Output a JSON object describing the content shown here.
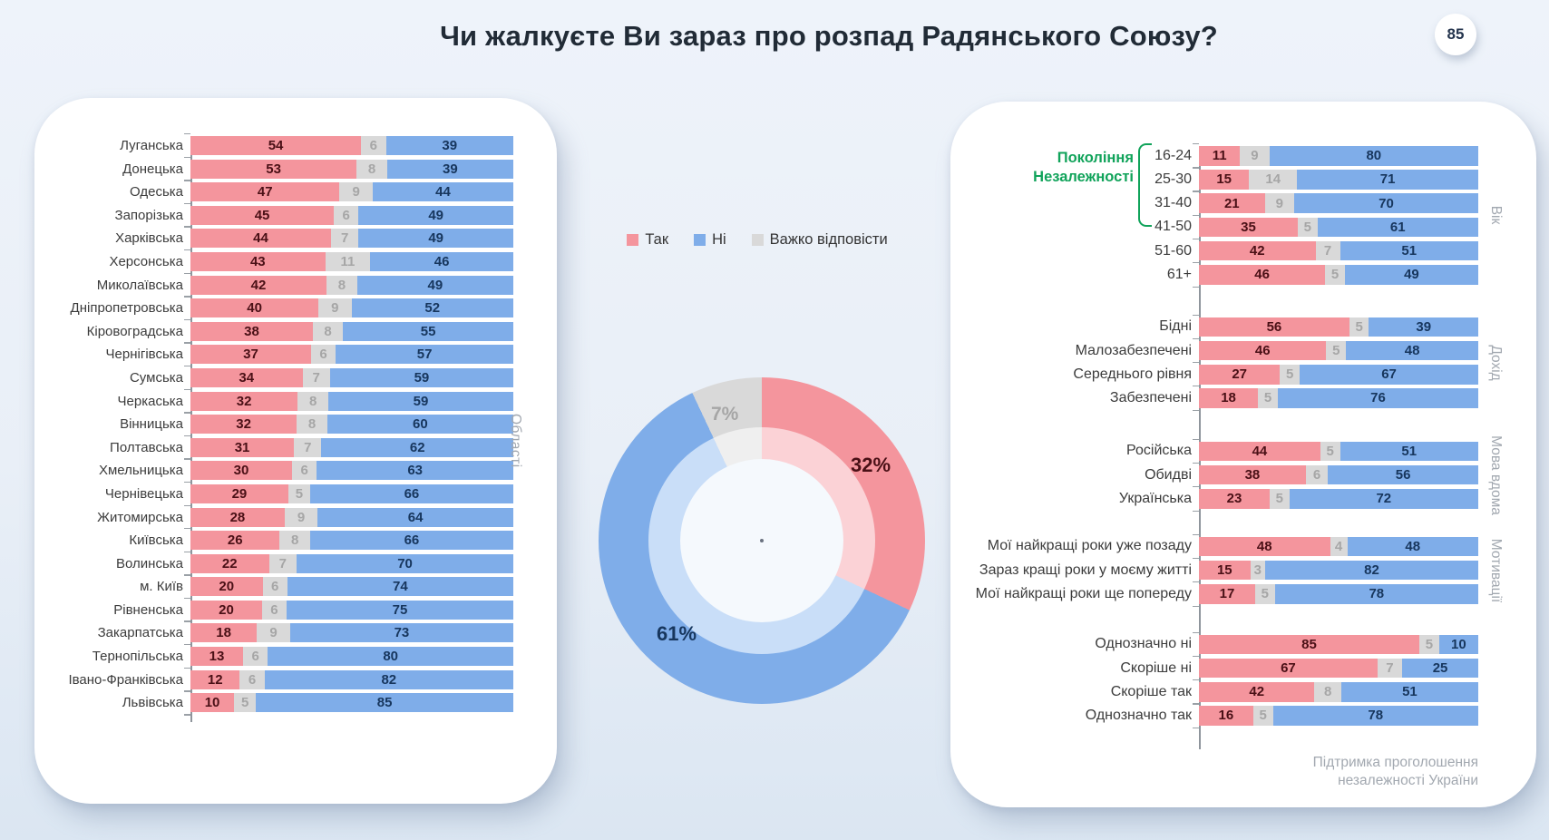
{
  "page": {
    "title": "Чи жалкуєте Ви зараз про розпад Радянського Союзу?",
    "badge": "85"
  },
  "legend": {
    "items": [
      {
        "label": "Так"
      },
      {
        "label": "Ні"
      },
      {
        "label": "Важко відповісти"
      }
    ]
  },
  "colors": {
    "yes": "#f4959d",
    "no": "#7fade9",
    "dk": "#d9d9d9",
    "yes_light": "#fbd2d6",
    "no_light": "#c9def8",
    "dk_light": "#efefef",
    "yes_text": "#4a1016",
    "no_text": "#17365d",
    "dk_text": "#a6a6a6",
    "green": "#10a35a",
    "muted": "#a2a8b0",
    "ink": "#3c3c3c",
    "title": "#212b36"
  },
  "chart_data": [
    {
      "type": "pie",
      "name": "overall-donut",
      "style": "donut",
      "slices": [
        {
          "label": "Так",
          "key": "yes",
          "value": 32,
          "pct_label": "32%"
        },
        {
          "label": "Ні",
          "key": "no",
          "value": 61,
          "pct_label": "61%"
        },
        {
          "label": "Важко відповісти",
          "key": "dk",
          "value": 7,
          "pct_label": "7%"
        }
      ]
    },
    {
      "type": "bar",
      "name": "oblast-breakdown",
      "orientation": "horizontal",
      "stacked": true,
      "xlim": [
        0,
        100
      ],
      "axis_label": "Області",
      "series_names": [
        "Так",
        "Важко відповісти",
        "Ні"
      ],
      "rows": [
        {
          "label": "Луганська",
          "values": [
            54,
            6,
            39
          ]
        },
        {
          "label": "Донецька",
          "values": [
            53,
            8,
            39
          ]
        },
        {
          "label": "Одеська",
          "values": [
            47,
            9,
            44
          ]
        },
        {
          "label": "Запорізька",
          "values": [
            45,
            6,
            49
          ]
        },
        {
          "label": "Харківська",
          "values": [
            44,
            7,
            49
          ]
        },
        {
          "label": "Херсонська",
          "values": [
            43,
            11,
            46
          ]
        },
        {
          "label": "Миколаївська",
          "values": [
            42,
            8,
            49
          ]
        },
        {
          "label": "Дніпропетровська",
          "values": [
            40,
            9,
            52
          ]
        },
        {
          "label": "Кіровоградська",
          "values": [
            38,
            8,
            55
          ]
        },
        {
          "label": "Чернігівська",
          "values": [
            37,
            6,
            57
          ]
        },
        {
          "label": "Сумська",
          "values": [
            34,
            7,
            59
          ]
        },
        {
          "label": "Черкаська",
          "values": [
            32,
            8,
            59
          ]
        },
        {
          "label": "Вінницька",
          "values": [
            32,
            8,
            60
          ]
        },
        {
          "label": "Полтавська",
          "values": [
            31,
            7,
            62
          ]
        },
        {
          "label": "Хмельницька",
          "values": [
            30,
            6,
            63
          ]
        },
        {
          "label": "Чернівецька",
          "values": [
            29,
            5,
            66
          ]
        },
        {
          "label": "Житомирська",
          "values": [
            28,
            9,
            64
          ]
        },
        {
          "label": "Київська",
          "values": [
            26,
            8,
            66
          ]
        },
        {
          "label": "Волинська",
          "values": [
            22,
            7,
            70
          ]
        },
        {
          "label": "м. Київ",
          "values": [
            20,
            6,
            74
          ]
        },
        {
          "label": "Рівненська",
          "values": [
            20,
            6,
            75
          ]
        },
        {
          "label": "Закарпатська",
          "values": [
            18,
            9,
            73
          ]
        },
        {
          "label": "Тернопільська",
          "values": [
            13,
            6,
            80
          ]
        },
        {
          "label": "Івано-Франківська",
          "values": [
            12,
            6,
            82
          ]
        },
        {
          "label": "Львівська",
          "values": [
            10,
            5,
            85
          ]
        }
      ]
    },
    {
      "type": "bar",
      "name": "demographics-breakdown",
      "orientation": "horizontal",
      "stacked": true,
      "xlim": [
        0,
        100
      ],
      "series_names": [
        "Так",
        "Важко відповісти",
        "Ні"
      ],
      "annotation": {
        "lines": [
          "Покоління",
          "Незалежності"
        ]
      },
      "caption_lines": [
        "Підтримка проголошення",
        "незалежності України"
      ],
      "sections": [
        {
          "name": "Вік",
          "rows": [
            {
              "label": "16-24",
              "values": [
                11,
                9,
                80
              ]
            },
            {
              "label": "25-30",
              "values": [
                15,
                14,
                71
              ]
            },
            {
              "label": "31-40",
              "values": [
                21,
                9,
                70
              ]
            },
            {
              "label": "41-50",
              "values": [
                35,
                5,
                61
              ]
            },
            {
              "label": "51-60",
              "values": [
                42,
                7,
                51
              ]
            },
            {
              "label": "61+",
              "values": [
                46,
                5,
                49
              ]
            }
          ]
        },
        {
          "name": "Дохід",
          "rows": [
            {
              "label": "Бідні",
              "values": [
                56,
                5,
                39
              ]
            },
            {
              "label": "Малозабезпечені",
              "values": [
                46,
                5,
                48
              ]
            },
            {
              "label": "Середнього рівня",
              "values": [
                27,
                5,
                67
              ]
            },
            {
              "label": "Забезпечені",
              "values": [
                18,
                5,
                76
              ]
            }
          ]
        },
        {
          "name": "Мова вдома",
          "rows": [
            {
              "label": "Російська",
              "values": [
                44,
                5,
                51
              ]
            },
            {
              "label": "Обидві",
              "values": [
                38,
                6,
                56
              ]
            },
            {
              "label": "Українська",
              "values": [
                23,
                5,
                72
              ]
            }
          ]
        },
        {
          "name": "Мотивації",
          "rows": [
            {
              "label": "Мої найкращі роки уже позаду",
              "values": [
                48,
                4,
                48
              ]
            },
            {
              "label": "Зараз кращі роки у моєму житті",
              "values": [
                15,
                3,
                82
              ]
            },
            {
              "label": "Мої найкращі роки ще попереду",
              "values": [
                17,
                5,
                78
              ]
            }
          ]
        },
        {
          "name": "Підтримка проголошення незалежності України",
          "rows": [
            {
              "label": "Однозначно ні",
              "values": [
                85,
                5,
                10
              ]
            },
            {
              "label": "Скоріше ні",
              "values": [
                67,
                7,
                25
              ]
            },
            {
              "label": "Скоріше так",
              "values": [
                42,
                8,
                51
              ]
            },
            {
              "label": "Однозначно так",
              "values": [
                16,
                5,
                78
              ]
            }
          ]
        }
      ]
    }
  ]
}
